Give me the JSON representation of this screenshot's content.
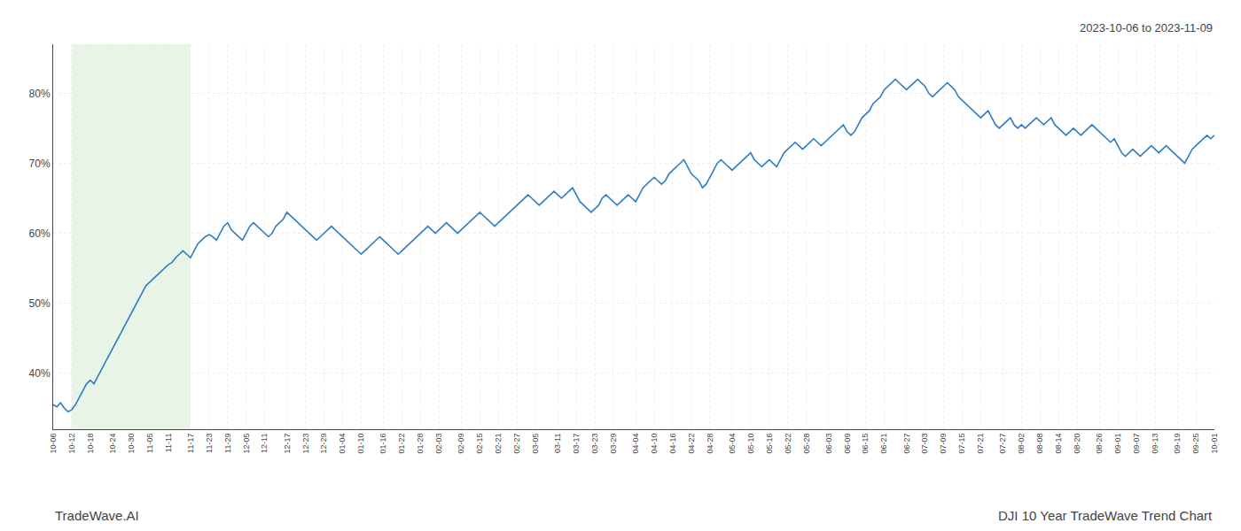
{
  "chart_data": {
    "type": "line",
    "title": "DJI 10 Year TradeWave Trend Chart",
    "subtitle": "2023-10-06 to 2023-11-09",
    "annotations": [
      "TradeWave.AI"
    ],
    "color": "#2e7dc4",
    "grid": true,
    "highlight": {
      "start": "10-12",
      "end": "11-17",
      "color": "#d6ecd2"
    },
    "ylim": [
      32,
      87
    ],
    "yticks": [
      {
        "value": 40,
        "label": "40%"
      },
      {
        "value": 50,
        "label": "50%"
      },
      {
        "value": 60,
        "label": "60%"
      },
      {
        "value": 70,
        "label": "70%"
      },
      {
        "value": 80,
        "label": "80%"
      }
    ],
    "categories": [
      "10-06",
      null,
      null,
      null,
      null,
      "10-12",
      null,
      null,
      null,
      null,
      "10-18",
      null,
      null,
      null,
      null,
      null,
      "10-24",
      null,
      null,
      null,
      null,
      "10-30",
      null,
      null,
      null,
      null,
      "11-05",
      null,
      null,
      null,
      null,
      "11-11",
      null,
      null,
      null,
      null,
      null,
      "11-17",
      null,
      null,
      null,
      null,
      "11-23",
      null,
      null,
      null,
      null,
      "11-29",
      null,
      null,
      null,
      null,
      "12-05",
      null,
      null,
      null,
      null,
      "12-11",
      null,
      null,
      null,
      null,
      null,
      "12-17",
      null,
      null,
      null,
      null,
      "12-23",
      null,
      null,
      null,
      null,
      "12-29",
      null,
      null,
      null,
      null,
      "01-04",
      null,
      null,
      null,
      null,
      "01-10",
      null,
      null,
      null,
      null,
      null,
      "01-16",
      null,
      null,
      null,
      null,
      "01-22",
      null,
      null,
      null,
      null,
      "01-28",
      null,
      null,
      null,
      null,
      "02-03",
      null,
      null,
      null,
      null,
      null,
      "02-09",
      null,
      null,
      null,
      null,
      "02-15",
      null,
      null,
      null,
      null,
      "02-21",
      null,
      null,
      null,
      null,
      "02-27",
      null,
      null,
      null,
      null,
      "03-05",
      null,
      null,
      null,
      null,
      null,
      "03-11",
      null,
      null,
      null,
      null,
      "03-17",
      null,
      null,
      null,
      null,
      "03-23",
      null,
      null,
      null,
      null,
      "03-29",
      null,
      null,
      null,
      null,
      null,
      "04-04",
      null,
      null,
      null,
      null,
      "04-10",
      null,
      null,
      null,
      null,
      "04-16",
      null,
      null,
      null,
      null,
      "04-22",
      null,
      null,
      null,
      null,
      "04-28",
      null,
      null,
      null,
      null,
      null,
      "05-04",
      null,
      null,
      null,
      null,
      "05-10",
      null,
      null,
      null,
      null,
      "05-16",
      null,
      null,
      null,
      null,
      "05-22",
      null,
      null,
      null,
      null,
      "05-28",
      null,
      null,
      null,
      null,
      null,
      "06-03",
      null,
      null,
      null,
      null,
      "06-09",
      null,
      null,
      null,
      null,
      "06-15",
      null,
      null,
      null,
      null,
      "06-21",
      null,
      null,
      null,
      null,
      null,
      "06-27",
      null,
      null,
      null,
      null,
      "07-03",
      null,
      null,
      null,
      null,
      "07-09",
      null,
      null,
      null,
      null,
      "07-15",
      null,
      null,
      null,
      null,
      "07-21",
      null,
      null,
      null,
      null,
      null,
      "07-27",
      null,
      null,
      null,
      null,
      "08-02",
      null,
      null,
      null,
      null,
      "08-08",
      null,
      null,
      null,
      null,
      "08-14",
      null,
      null,
      null,
      null,
      "08-20",
      null,
      null,
      null,
      null,
      null,
      "08-26",
      null,
      null,
      null,
      null,
      "09-01",
      null,
      null,
      null,
      null,
      "09-07",
      null,
      null,
      null,
      null,
      "09-13",
      null,
      null,
      null,
      null,
      null,
      "09-19",
      null,
      null,
      null,
      null,
      "09-25",
      null,
      null,
      null,
      null,
      "10-01"
    ],
    "values": [
      35.5,
      35.2,
      35.8,
      35.0,
      34.5,
      34.8,
      35.5,
      36.5,
      37.5,
      38.5,
      39.0,
      38.5,
      39.5,
      40.5,
      41.5,
      42.5,
      43.5,
      44.5,
      45.5,
      46.5,
      47.5,
      48.5,
      49.5,
      50.5,
      51.5,
      52.5,
      53.0,
      53.5,
      54.0,
      54.5,
      55.0,
      55.5,
      55.8,
      56.5,
      57.0,
      57.5,
      57.0,
      56.5,
      57.5,
      58.5,
      59.0,
      59.5,
      59.8,
      59.5,
      59.0,
      60.0,
      61.0,
      61.5,
      60.5,
      60.0,
      59.5,
      59.0,
      60.0,
      61.0,
      61.5,
      61.0,
      60.5,
      60.0,
      59.5,
      60.0,
      61.0,
      61.5,
      62.0,
      63.0,
      62.5,
      62.0,
      61.5,
      61.0,
      60.5,
      60.0,
      59.5,
      59.0,
      59.5,
      60.0,
      60.5,
      61.0,
      60.5,
      60.0,
      59.5,
      59.0,
      58.5,
      58.0,
      57.5,
      57.0,
      57.5,
      58.0,
      58.5,
      59.0,
      59.5,
      59.0,
      58.5,
      58.0,
      57.5,
      57.0,
      57.5,
      58.0,
      58.5,
      59.0,
      59.5,
      60.0,
      60.5,
      61.0,
      60.5,
      60.0,
      60.5,
      61.0,
      61.5,
      61.0,
      60.5,
      60.0,
      60.5,
      61.0,
      61.5,
      62.0,
      62.5,
      63.0,
      62.5,
      62.0,
      61.5,
      61.0,
      61.5,
      62.0,
      62.5,
      63.0,
      63.5,
      64.0,
      64.5,
      65.0,
      65.5,
      65.0,
      64.5,
      64.0,
      64.5,
      65.0,
      65.5,
      66.0,
      65.5,
      65.0,
      65.5,
      66.0,
      66.5,
      65.5,
      64.5,
      64.0,
      63.5,
      63.0,
      63.5,
      64.0,
      65.0,
      65.5,
      65.0,
      64.5,
      64.0,
      64.5,
      65.0,
      65.5,
      65.0,
      64.5,
      65.5,
      66.5,
      67.0,
      67.5,
      68.0,
      67.5,
      67.0,
      67.5,
      68.5,
      69.0,
      69.5,
      70.0,
      70.5,
      69.5,
      68.5,
      68.0,
      67.5,
      66.5,
      67.0,
      68.0,
      69.0,
      70.0,
      70.5,
      70.0,
      69.5,
      69.0,
      69.5,
      70.0,
      70.5,
      71.0,
      71.5,
      70.5,
      70.0,
      69.5,
      70.0,
      70.5,
      70.0,
      69.5,
      70.5,
      71.5,
      72.0,
      72.5,
      73.0,
      72.5,
      72.0,
      72.5,
      73.0,
      73.5,
      73.0,
      72.5,
      73.0,
      73.5,
      74.0,
      74.5,
      75.0,
      75.5,
      74.5,
      74.0,
      74.5,
      75.5,
      76.5,
      77.0,
      77.5,
      78.5,
      79.0,
      79.5,
      80.5,
      81.0,
      81.5,
      82.0,
      81.5,
      81.0,
      80.5,
      81.0,
      81.5,
      82.0,
      81.5,
      81.0,
      80.0,
      79.5,
      80.0,
      80.5,
      81.0,
      81.5,
      81.0,
      80.5,
      79.5,
      79.0,
      78.5,
      78.0,
      77.5,
      77.0,
      76.5,
      77.0,
      77.5,
      76.5,
      75.5,
      75.0,
      75.5,
      76.0,
      76.5,
      75.5,
      75.0,
      75.5,
      75.0,
      75.5,
      76.0,
      76.5,
      76.0,
      75.5,
      76.0,
      76.5,
      75.5,
      75.0,
      74.5,
      74.0,
      74.5,
      75.0,
      74.5,
      74.0,
      74.5,
      75.0,
      75.5,
      75.0,
      74.5,
      74.0,
      73.5,
      73.0,
      73.5,
      72.5,
      71.5,
      71.0,
      71.5,
      72.0,
      71.5,
      71.0,
      71.5,
      72.0,
      72.5,
      72.0,
      71.5,
      72.0,
      72.5,
      72.0,
      71.5,
      71.0,
      70.5,
      70.0,
      71.0,
      72.0,
      72.5,
      73.0,
      73.5,
      74.0,
      73.5,
      74.0
    ]
  }
}
